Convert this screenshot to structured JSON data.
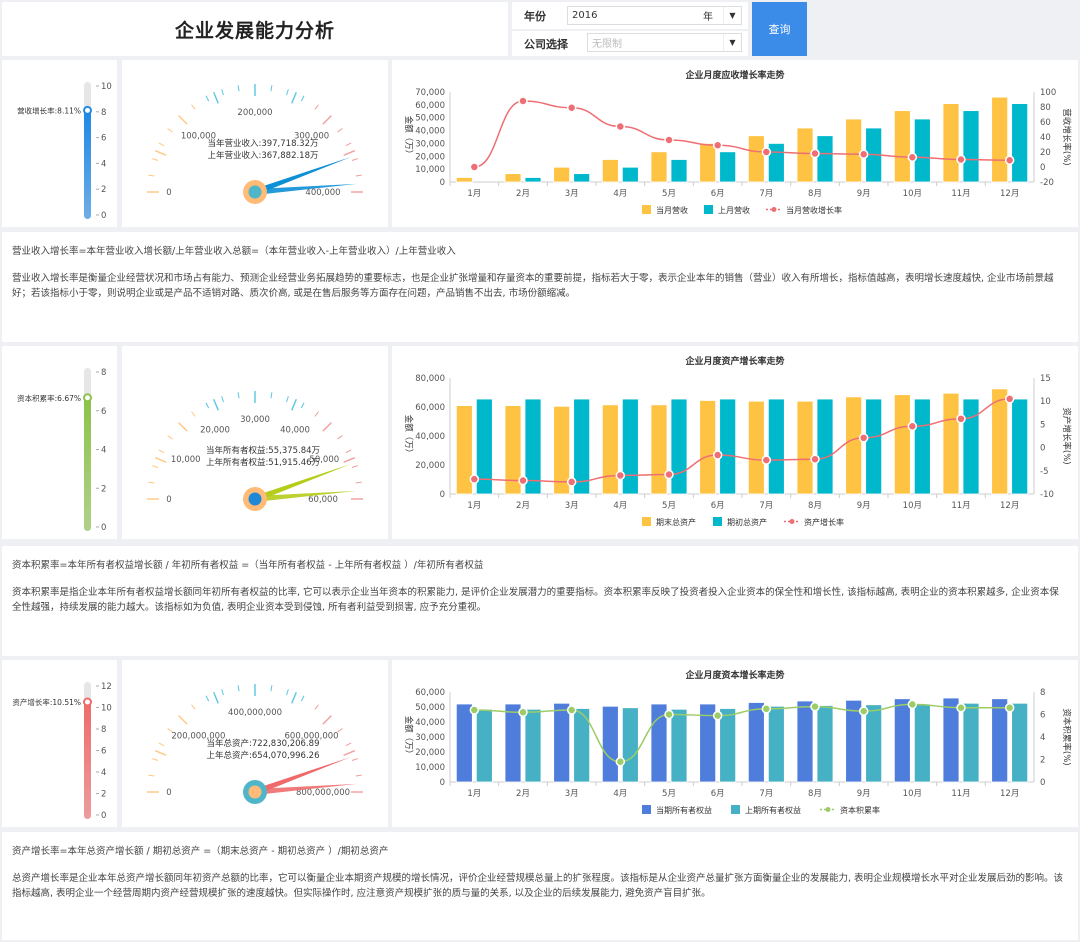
{
  "header": {
    "title": "企业发展能力分析",
    "year_label": "年份",
    "year_value": "2016",
    "year_suffix": "年",
    "company_label": "公司选择",
    "company_placeholder": "无限制",
    "query_button": "查询",
    "accent_color": "#3b8be8"
  },
  "sections": [
    {
      "thermometer": {
        "label": "营收增长率:8.11%",
        "value": 8.11,
        "max": 10,
        "ticks": [
          "10",
          "8",
          "6",
          "4",
          "2",
          "0"
        ],
        "color": "#1e88e5"
      },
      "gauge": {
        "ticks": [
          "0",
          "100,000",
          "200,000",
          "300,000",
          "400,000"
        ],
        "line1": "当年营业收入:397,718.32万",
        "line2": "上年营业收入:367,882.18万",
        "needle_color": "#0d8fd6"
      },
      "formula": "营业收入增长率=本年营业收入增长额/上年营业收入总额=（本年营业收入-上年营业收入）/上年营业收入",
      "description": "营业收入增长率是衡量企业经营状况和市场占有能力、预测企业经营业务拓展趋势的重要标志，也是企业扩张增量和存量资本的重要前提，指标若大于零，表示企业本年的销售（营业）收入有所增长，指标值越高，表明增长速度越快, 企业市场前景越好；若该指标小于零，则说明企业或是产品不适销对路、质次价高, 或是在售后服务等方面存在问题，产品销售不出去, 市场份额缩减。"
    },
    {
      "thermometer": {
        "label": "资本积累率:6.67%",
        "value": 6.67,
        "max": 8,
        "ticks": [
          "8",
          "6",
          "4",
          "2",
          "0"
        ],
        "color": "#8bc34a"
      },
      "gauge": {
        "ticks": [
          "0",
          "10,000",
          "20,000",
          "30,000",
          "40,000",
          "50,000",
          "60,000"
        ],
        "line1": "当年所有者权益:55,375.84万",
        "line2": "上年所有者权益:51,915.46万",
        "needle_color": "#b5cc18"
      },
      "formula": "资本积累率=本年所有者权益增长额 / 年初所有者权益 =（当年所有者权益 - 上年所有者权益 ）/年初所有者权益",
      "description": "资本积累率是指企业本年所有者权益增长额同年初所有者权益的比率, 它可以表示企业当年资本的积累能力, 是评价企业发展潜力的重要指标。资本积累率反映了投资者投入企业资本的保全性和增长性, 该指标越高, 表明企业的资本积累越多, 企业资本保全性越强，持续发展的能力越大。该指标如为负值, 表明企业资本受到侵蚀, 所有者利益受到损害, 应予充分重视。"
    },
    {
      "thermometer": {
        "label": "资产增长率:10.51%",
        "value": 10.51,
        "max": 12,
        "ticks": [
          "12",
          "10",
          "8",
          "6",
          "4",
          "2",
          "0"
        ],
        "color": "#ef6b6b"
      },
      "gauge": {
        "ticks": [
          "0",
          "200,000,000",
          "400,000,000",
          "600,000,000",
          "800,000,000"
        ],
        "line1": "当年总资产:722,830,206.89",
        "line2": "上年总资产:654,070,996.26",
        "needle_color": "#ef6b6b"
      },
      "formula": "资产增长率=本年总资产增长额 / 期初总资产 =（期末总资产 - 期初总资产 ）/期初总资产",
      "description": "总资产增长率是企业本年总资产增长额同年初资产总额的比率，它可以衡量企业本期资产规模的增长情况，评价企业经营规模总量上的扩张程度。该指标是从企业资产总量扩张方面衡量企业的发展能力, 表明企业规模增长水平对企业发展后劲的影响。该指标越高, 表明企业一个经营周期内资产经营规模扩张的速度越快。但实际操作时, 应注意资产规模扩张的质与量的关系, 以及企业的后续发展能力, 避免资产盲目扩张。"
    }
  ],
  "chart_data": [
    {
      "type": "bar",
      "title": "企业月度应收增长率走势",
      "categories": [
        "1月",
        "2月",
        "3月",
        "4月",
        "5月",
        "6月",
        "7月",
        "8月",
        "9月",
        "10月",
        "11月",
        "12月"
      ],
      "ylabel": "金额（万）",
      "y2label": "营收增长率(%)",
      "ylim": [
        0,
        70000
      ],
      "y2lim": [
        -20,
        100
      ],
      "yticks": [
        "70,000",
        "60,000",
        "50,000",
        "40,000",
        "30,000",
        "20,000",
        "10,000",
        "0"
      ],
      "y2ticks": [
        "100",
        "80",
        "60",
        "40",
        "20",
        "0",
        "-20"
      ],
      "series": [
        {
          "name": "当月营收",
          "kind": "bar",
          "color": "#ffc343",
          "values": [
            3500,
            6500,
            11500,
            17500,
            23500,
            30000,
            36000,
            42000,
            49000,
            55500,
            61000,
            66000
          ]
        },
        {
          "name": "上月营收",
          "kind": "bar",
          "color": "#00b8cc",
          "values": [
            0,
            3500,
            6500,
            11500,
            17500,
            23500,
            30000,
            36000,
            42000,
            49000,
            55500,
            61000
          ]
        },
        {
          "name": "当月营收增长率",
          "kind": "line",
          "axis": "right",
          "color": "#ee6e73",
          "values": [
            0,
            88,
            79,
            54,
            36,
            29,
            20,
            18,
            17,
            13,
            10,
            9
          ]
        }
      ],
      "legend": [
        "当月营收",
        "上月营收",
        "当月营收增长率"
      ]
    },
    {
      "type": "bar",
      "title": "企业月度资产增长率走势",
      "categories": [
        "1月",
        "2月",
        "3月",
        "4月",
        "5月",
        "6月",
        "7月",
        "8月",
        "9月",
        "10月",
        "11月",
        "12月"
      ],
      "ylabel": "金额（万）",
      "y2label": "资产增长率(%)",
      "ylim": [
        0,
        80000
      ],
      "y2lim": [
        -10,
        15
      ],
      "yticks": [
        "80,000",
        "60,000",
        "40,000",
        "20,000",
        "0"
      ],
      "y2ticks": [
        "15",
        "10",
        "5",
        "0",
        "-5",
        "-10"
      ],
      "series": [
        {
          "name": "期末总资产",
          "kind": "bar",
          "color": "#ffc343",
          "values": [
            61000,
            61000,
            60500,
            61500,
            61500,
            64500,
            64000,
            64000,
            67000,
            68500,
            69500,
            72500
          ]
        },
        {
          "name": "期初总资产",
          "kind": "bar",
          "color": "#00b8cc",
          "values": [
            65500,
            65500,
            65500,
            65500,
            65500,
            65500,
            65500,
            65500,
            65500,
            65500,
            65500,
            65500
          ]
        },
        {
          "name": "资产增长率",
          "kind": "line",
          "axis": "right",
          "color": "#ee6e73",
          "values": [
            -6.8,
            -7.1,
            -7.4,
            -6.0,
            -5.8,
            -1.6,
            -2.7,
            -2.5,
            2.1,
            4.6,
            6.2,
            10.5
          ]
        }
      ],
      "legend": [
        "期末总资产",
        "期初总资产",
        "资产增长率"
      ]
    },
    {
      "type": "bar",
      "title": "企业月度资本增长率走势",
      "categories": [
        "1月",
        "2月",
        "3月",
        "4月",
        "5月",
        "6月",
        "7月",
        "8月",
        "9月",
        "10月",
        "11月",
        "12月"
      ],
      "ylabel": "金额（万）",
      "y2label": "资本积累率(%)",
      "ylim": [
        0,
        60000
      ],
      "y2lim": [
        0,
        8
      ],
      "yticks": [
        "60,000",
        "50,000",
        "40,000",
        "30,000",
        "20,000",
        "10,000",
        "0"
      ],
      "y2ticks": [
        "8",
        "6",
        "4",
        "2",
        "0"
      ],
      "series": [
        {
          "name": "当期所有者权益",
          "kind": "bar",
          "color": "#4f7ddb",
          "values": [
            52000,
            52000,
            52500,
            50500,
            52000,
            52000,
            53000,
            54000,
            54500,
            55500,
            56000,
            55500
          ]
        },
        {
          "name": "上期所有者权益",
          "kind": "bar",
          "color": "#46b1c4",
          "values": [
            48500,
            48500,
            49000,
            49500,
            48500,
            49000,
            50500,
            51000,
            51500,
            52000,
            52500,
            52500
          ]
        },
        {
          "name": "资本积累率",
          "kind": "line",
          "axis": "right",
          "color": "#9ccc65",
          "values": [
            6.4,
            6.2,
            6.4,
            1.8,
            6.0,
            5.9,
            6.5,
            6.7,
            6.3,
            6.9,
            6.6,
            6.6
          ]
        }
      ],
      "legend": [
        "当期所有者权益",
        "上期所有者权益",
        "资本积累率"
      ]
    }
  ]
}
